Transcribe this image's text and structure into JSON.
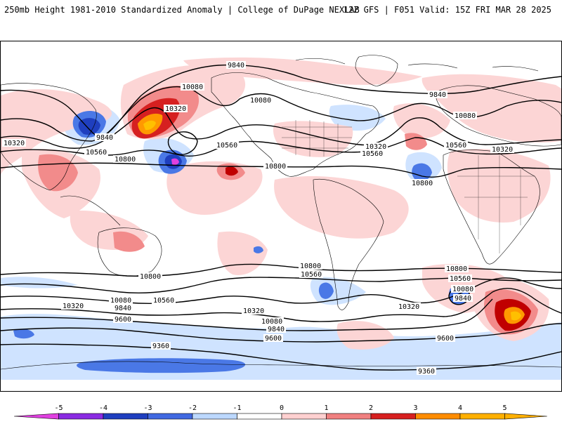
{
  "header": {
    "title": "250mb Height 1981-2010 Standardized Anomaly | College of DuPage NEXLAB",
    "run_info": "12Z GFS | F051 Valid: 15Z FRI MAR 28 2025"
  },
  "contour_labels": {
    "c9840_n": "9840",
    "c10080_ak": "10080",
    "c10320_ak": "10320",
    "c10080_ca": "10080",
    "c9840_eu": "9840",
    "c10080_eu": "10080",
    "c10560_us": "10560",
    "c10320_us": "10320",
    "c10560_us2": "10560",
    "c10800_pac": "10800",
    "c10800_us": "10800",
    "c10320_as": "10320",
    "c10560_as": "10560",
    "c9840_pac": "9840",
    "c10560_atl": "10560",
    "c10320_eu2": "10320",
    "c10800_atl": "10800",
    "c10800_s1": "10800",
    "c10800_sa": "10800",
    "c10800_sio": "10800",
    "c10560_sa": "10560",
    "c10560_sio": "10560",
    "c10560_sp": "10560",
    "c10080_sio": "10080",
    "c9840_sio": "9840",
    "c10320_sw": "10320",
    "c10080_sw": "10080",
    "c9840_sw": "9840",
    "c9600_sw": "9600",
    "c10320_sp": "10320",
    "c10080_sp": "10080",
    "c9840_sp": "9840",
    "c9600_sp": "9600",
    "c10320_sa": "10320",
    "c9600_sio": "9600",
    "c9360_w": "9360",
    "c9360_e": "9360"
  },
  "colorbar": {
    "ticks": [
      "-5",
      "-4",
      "-3",
      "-2",
      "-1",
      "0",
      "1",
      "2",
      "3",
      "4",
      "5"
    ],
    "colors": [
      "#e040e0",
      "#8a2be2",
      "#1f3fbf",
      "#4169e1",
      "#bcd8ff",
      "#ffffff",
      "#ffd0d0",
      "#f08080",
      "#d62020",
      "#ff8c00",
      "#ffb000"
    ]
  },
  "map": {
    "projection": "cylindrical global",
    "coastline_color": "#000000",
    "variable": "250mb geopotential height (m) with standardized anomaly shading"
  }
}
